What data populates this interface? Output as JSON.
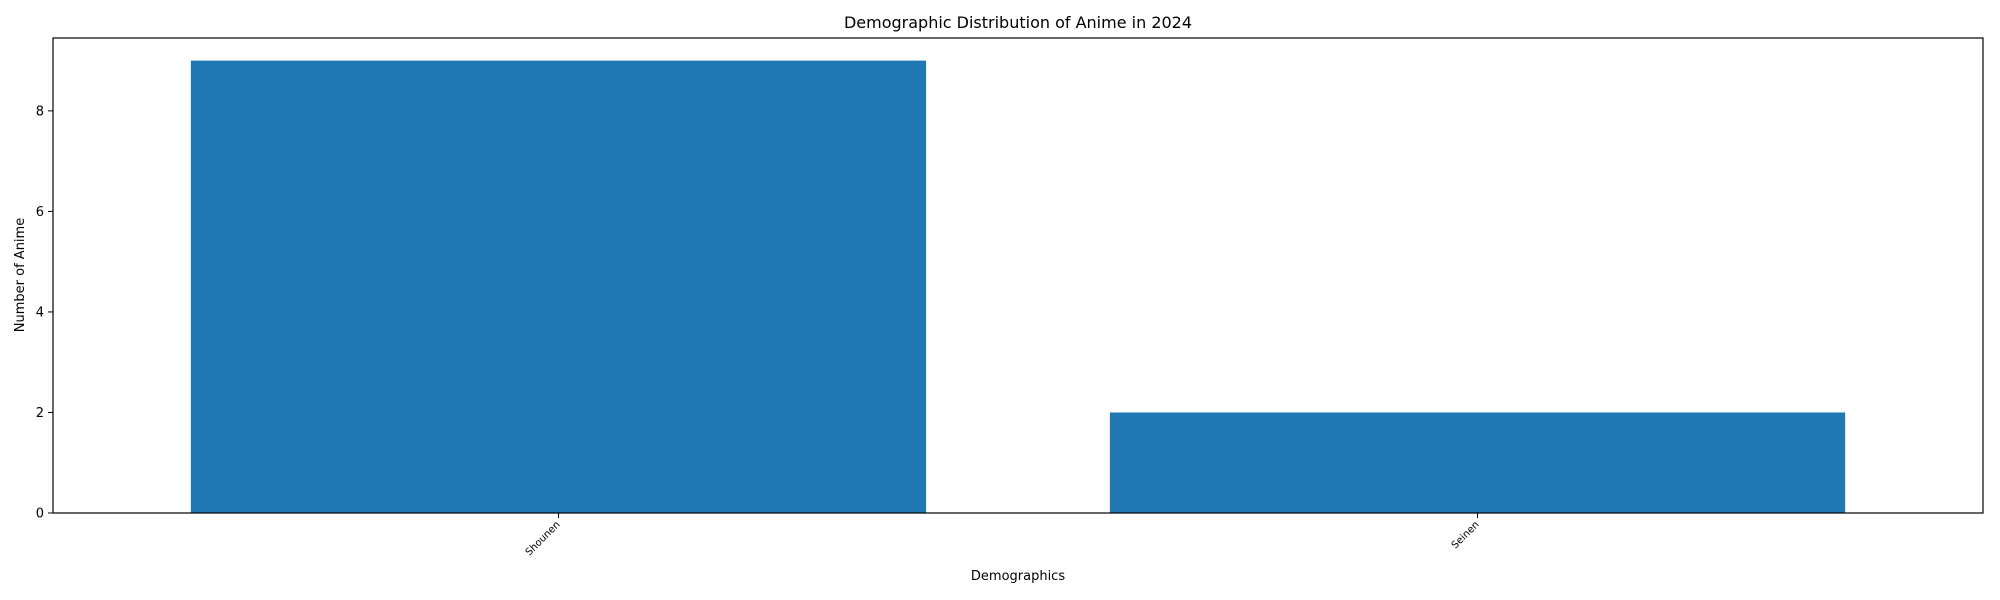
{
  "chart_data": {
    "type": "bar",
    "title": "Demographic Distribution of Anime in 2024",
    "xlabel": "Demographics",
    "ylabel": "Number of Anime",
    "categories": [
      "Shounen",
      "Seinen"
    ],
    "values": [
      9,
      2
    ],
    "ylim": [
      0,
      9.45
    ],
    "yticks": [
      0,
      2,
      4,
      6,
      8
    ],
    "bar_color": "#1f77b4",
    "grid": false,
    "legend": "none",
    "xtick_rotation": -45
  }
}
